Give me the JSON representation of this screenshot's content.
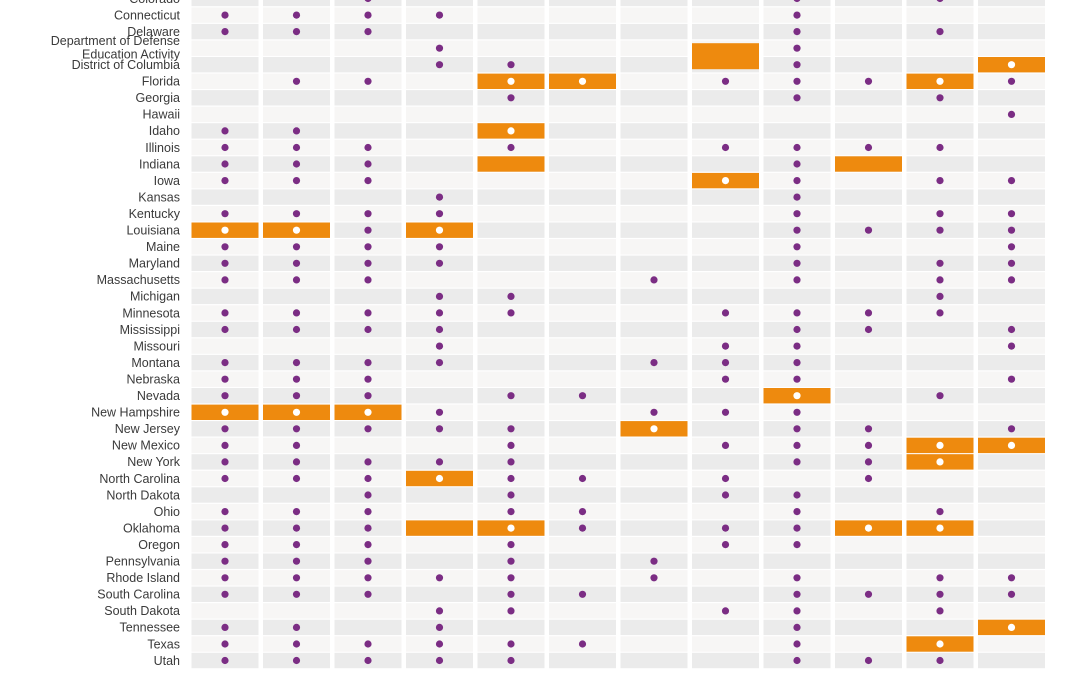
{
  "chart_data": {
    "type": "table",
    "columns": 12,
    "colors": {
      "dot": "#7b2d84",
      "highlight": "#ee8a0e",
      "highlight_dot": "#ffffff",
      "row_dark": "#ebebeb",
      "row_light": "#f7f6f5",
      "label": "#3a3a3a"
    },
    "rows": [
      {
        "label": "Colorado",
        "dots": [
          2,
          8,
          10
        ],
        "highlights": []
      },
      {
        "label": "Connecticut",
        "dots": [
          0,
          1,
          2,
          3,
          8
        ],
        "highlights": []
      },
      {
        "label": "Delaware",
        "dots": [
          0,
          1,
          2,
          8,
          10
        ],
        "highlights": []
      },
      {
        "label": "Department of Defense Education Activity",
        "dots": [
          3,
          8
        ],
        "highlights": [
          7
        ]
      },
      {
        "label": "District of Columbia",
        "dots": [
          3,
          4,
          8,
          11
        ],
        "highlights": [
          11
        ]
      },
      {
        "label": "Florida",
        "dots": [
          1,
          2,
          4,
          5,
          7,
          8,
          9,
          10,
          11
        ],
        "highlights": [
          4,
          5,
          10
        ]
      },
      {
        "label": "Georgia",
        "dots": [
          4,
          8,
          10
        ],
        "highlights": []
      },
      {
        "label": "Hawaii",
        "dots": [
          11
        ],
        "highlights": []
      },
      {
        "label": "Idaho",
        "dots": [
          0,
          1,
          4
        ],
        "highlights": [
          4
        ]
      },
      {
        "label": "Illinois",
        "dots": [
          0,
          1,
          2,
          4,
          7,
          8,
          9,
          10
        ],
        "highlights": []
      },
      {
        "label": "Indiana",
        "dots": [
          0,
          1,
          2,
          8
        ],
        "highlights": [
          4,
          9
        ]
      },
      {
        "label": "Iowa",
        "dots": [
          0,
          1,
          2,
          7,
          8,
          10,
          11
        ],
        "highlights": [
          7
        ]
      },
      {
        "label": "Kansas",
        "dots": [
          3,
          8
        ],
        "highlights": []
      },
      {
        "label": "Kentucky",
        "dots": [
          0,
          1,
          2,
          3,
          8,
          10,
          11
        ],
        "highlights": []
      },
      {
        "label": "Louisiana",
        "dots": [
          0,
          1,
          2,
          3,
          8,
          9,
          10,
          11
        ],
        "highlights": [
          0,
          1,
          3
        ]
      },
      {
        "label": "Maine",
        "dots": [
          0,
          1,
          2,
          3,
          8,
          11
        ],
        "highlights": []
      },
      {
        "label": "Maryland",
        "dots": [
          0,
          1,
          2,
          3,
          8,
          10,
          11
        ],
        "highlights": []
      },
      {
        "label": "Massachusetts",
        "dots": [
          0,
          1,
          2,
          6,
          8,
          10,
          11
        ],
        "highlights": []
      },
      {
        "label": "Michigan",
        "dots": [
          3,
          4,
          10
        ],
        "highlights": []
      },
      {
        "label": "Minnesota",
        "dots": [
          0,
          1,
          2,
          3,
          4,
          7,
          8,
          9,
          10
        ],
        "highlights": []
      },
      {
        "label": "Mississippi",
        "dots": [
          0,
          1,
          2,
          3,
          8,
          9,
          11
        ],
        "highlights": []
      },
      {
        "label": "Missouri",
        "dots": [
          3,
          7,
          8,
          11
        ],
        "highlights": []
      },
      {
        "label": "Montana",
        "dots": [
          0,
          1,
          2,
          3,
          6,
          7,
          8
        ],
        "highlights": []
      },
      {
        "label": "Nebraska",
        "dots": [
          0,
          1,
          2,
          7,
          8,
          11
        ],
        "highlights": []
      },
      {
        "label": "Nevada",
        "dots": [
          0,
          1,
          2,
          4,
          5,
          8,
          10
        ],
        "highlights": [
          8
        ]
      },
      {
        "label": "New Hampshire",
        "dots": [
          0,
          1,
          2,
          3,
          6,
          7,
          8
        ],
        "highlights": [
          0,
          1,
          2
        ]
      },
      {
        "label": "New Jersey",
        "dots": [
          0,
          1,
          2,
          3,
          4,
          6,
          8,
          9,
          11
        ],
        "highlights": [
          6
        ]
      },
      {
        "label": "New Mexico",
        "dots": [
          0,
          1,
          4,
          7,
          8,
          9,
          10,
          11
        ],
        "highlights": [
          10,
          11
        ]
      },
      {
        "label": "New York",
        "dots": [
          0,
          1,
          2,
          3,
          4,
          8,
          9,
          10
        ],
        "highlights": [
          10
        ]
      },
      {
        "label": "North Carolina",
        "dots": [
          0,
          1,
          2,
          3,
          4,
          5,
          7,
          9
        ],
        "highlights": [
          3
        ]
      },
      {
        "label": "North Dakota",
        "dots": [
          2,
          4,
          7,
          8
        ],
        "highlights": []
      },
      {
        "label": "Ohio",
        "dots": [
          0,
          1,
          2,
          4,
          5,
          8,
          10
        ],
        "highlights": []
      },
      {
        "label": "Oklahoma",
        "dots": [
          0,
          1,
          2,
          4,
          5,
          7,
          8,
          9,
          10
        ],
        "highlights": [
          3,
          4,
          9,
          10
        ]
      },
      {
        "label": "Oregon",
        "dots": [
          0,
          1,
          2,
          4,
          7,
          8
        ],
        "highlights": []
      },
      {
        "label": "Pennsylvania",
        "dots": [
          0,
          1,
          2,
          4,
          6
        ],
        "highlights": []
      },
      {
        "label": "Rhode Island",
        "dots": [
          0,
          1,
          2,
          3,
          4,
          6,
          8,
          10,
          11
        ],
        "highlights": []
      },
      {
        "label": "South Carolina",
        "dots": [
          0,
          1,
          2,
          4,
          5,
          8,
          9,
          10,
          11
        ],
        "highlights": []
      },
      {
        "label": "South Dakota",
        "dots": [
          3,
          4,
          7,
          8,
          10
        ],
        "highlights": []
      },
      {
        "label": "Tennessee",
        "dots": [
          0,
          1,
          3,
          8,
          11
        ],
        "highlights": [
          11
        ]
      },
      {
        "label": "Texas",
        "dots": [
          0,
          1,
          2,
          3,
          4,
          5,
          8,
          10
        ],
        "highlights": [
          10
        ]
      },
      {
        "label": "Utah",
        "dots": [
          0,
          1,
          2,
          3,
          4,
          8,
          9,
          10
        ],
        "highlights": []
      }
    ]
  }
}
